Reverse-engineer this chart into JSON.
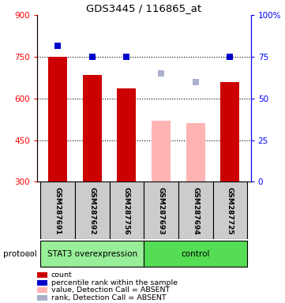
{
  "title": "GDS3445 / 116865_at",
  "samples": [
    "GSM287691",
    "GSM287692",
    "GSM287756",
    "GSM287693",
    "GSM287694",
    "GSM287725"
  ],
  "bar_values": [
    750,
    685,
    635,
    520,
    510,
    660
  ],
  "bar_colors": [
    "#cc0000",
    "#cc0000",
    "#cc0000",
    "#ffb3b3",
    "#ffb3b3",
    "#cc0000"
  ],
  "dot_values_left": [
    790,
    750,
    750,
    null,
    null,
    750
  ],
  "dot_colors": [
    "#0000cc",
    "#0000cc",
    "#0000cc",
    null,
    null,
    "#0000cc"
  ],
  "absent_rank_values": [
    null,
    null,
    null,
    690,
    660,
    null
  ],
  "absent_rank_color": "#aab0cc",
  "ylim_left": [
    300,
    900
  ],
  "ylim_right": [
    0,
    100
  ],
  "yticks_left": [
    300,
    450,
    600,
    750,
    900
  ],
  "yticks_right": [
    0,
    25,
    50,
    75,
    100
  ],
  "ytick_labels_right": [
    "0",
    "25",
    "50",
    "75",
    "100%"
  ],
  "grid_values": [
    450,
    600,
    750
  ],
  "protocol_groups": [
    {
      "label": "STAT3 overexpression",
      "start": 0,
      "end": 3,
      "color": "#99ee99"
    },
    {
      "label": "control",
      "start": 3,
      "end": 6,
      "color": "#55dd55"
    }
  ],
  "protocol_label": "protocol",
  "legend_items": [
    {
      "label": "count",
      "color": "#cc0000"
    },
    {
      "label": "percentile rank within the sample",
      "color": "#0000cc"
    },
    {
      "label": "value, Detection Call = ABSENT",
      "color": "#ffb3b3"
    },
    {
      "label": "rank, Detection Call = ABSENT",
      "color": "#aab0cc"
    }
  ],
  "bar_width": 0.55,
  "sample_area_bg": "#cccccc",
  "plot_bg": "#f0f0f0"
}
